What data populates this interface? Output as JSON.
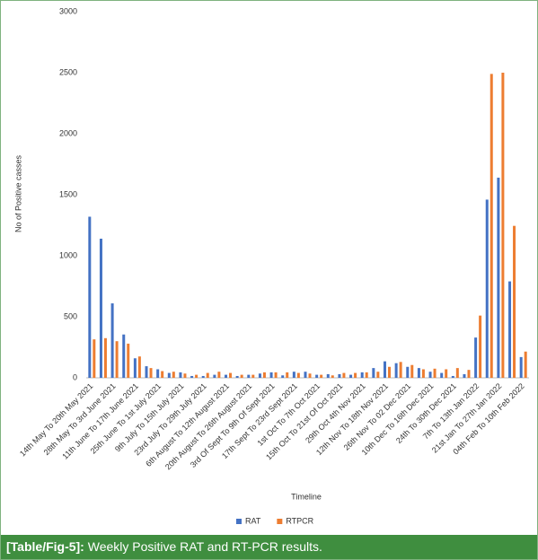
{
  "chart_data": {
    "type": "bar",
    "y_label": "No of Positive casses",
    "x_label": "Timeline",
    "categories": [
      "14th May To 20th May 2021",
      null,
      "28th May To 3rd June 2021",
      null,
      "11th June To 17th June 2021",
      null,
      "25th June To 1st July 2021",
      null,
      "9th July To 15th July 2021",
      null,
      "23rd July To 29th July 2021",
      null,
      "6th August To 12th August 2021",
      null,
      "20th August To 26th August 2021",
      null,
      "3rd Of Sept To 9th Of Sept 2021",
      null,
      "17th Sept To 23rd Sept 2021",
      null,
      "1st Oct To 7th Oct 2021",
      null,
      "15th Oct To 21st Of Oct 2021",
      null,
      "29th Oct 4th Nov 2021",
      null,
      "12th Nov To 18th Nov 2021",
      null,
      "26th Nov To 02 Dec 2021",
      null,
      "10th Dec To 16th Dec 2021",
      null,
      "24th To 30th Dec 2021",
      null,
      "7th To 13th Jan 2022",
      null,
      "21st Jan To 27th Jan 2022",
      null,
      "04th Feb To 10th Feb 2022"
    ],
    "series": [
      {
        "name": "RAT",
        "color": "#4472c4",
        "values": [
          1320,
          1140,
          610,
          355,
          160,
          95,
          70,
          40,
          45,
          15,
          15,
          25,
          25,
          15,
          25,
          35,
          45,
          20,
          50,
          50,
          25,
          30,
          30,
          25,
          45,
          80,
          135,
          120,
          90,
          80,
          50,
          40,
          15,
          30,
          330,
          1460,
          1640,
          790,
          170
        ]
      },
      {
        "name": "RTPCR",
        "color": "#ed7d31",
        "values": [
          315,
          325,
          300,
          280,
          175,
          80,
          55,
          50,
          35,
          25,
          40,
          50,
          40,
          25,
          25,
          45,
          45,
          45,
          40,
          35,
          25,
          20,
          40,
          40,
          45,
          50,
          90,
          130,
          105,
          70,
          75,
          70,
          80,
          65,
          510,
          2490,
          2500,
          1245,
          215
        ]
      }
    ],
    "ylim": [
      0,
      3000
    ],
    "yticks": [
      0,
      500,
      1000,
      1500,
      2000,
      2500,
      3000
    ],
    "grid": false,
    "legend": "bottom"
  },
  "caption": {
    "label": "[Table/Fig-5]:",
    "text": "Weekly Positive RAT and RT-PCR results."
  }
}
